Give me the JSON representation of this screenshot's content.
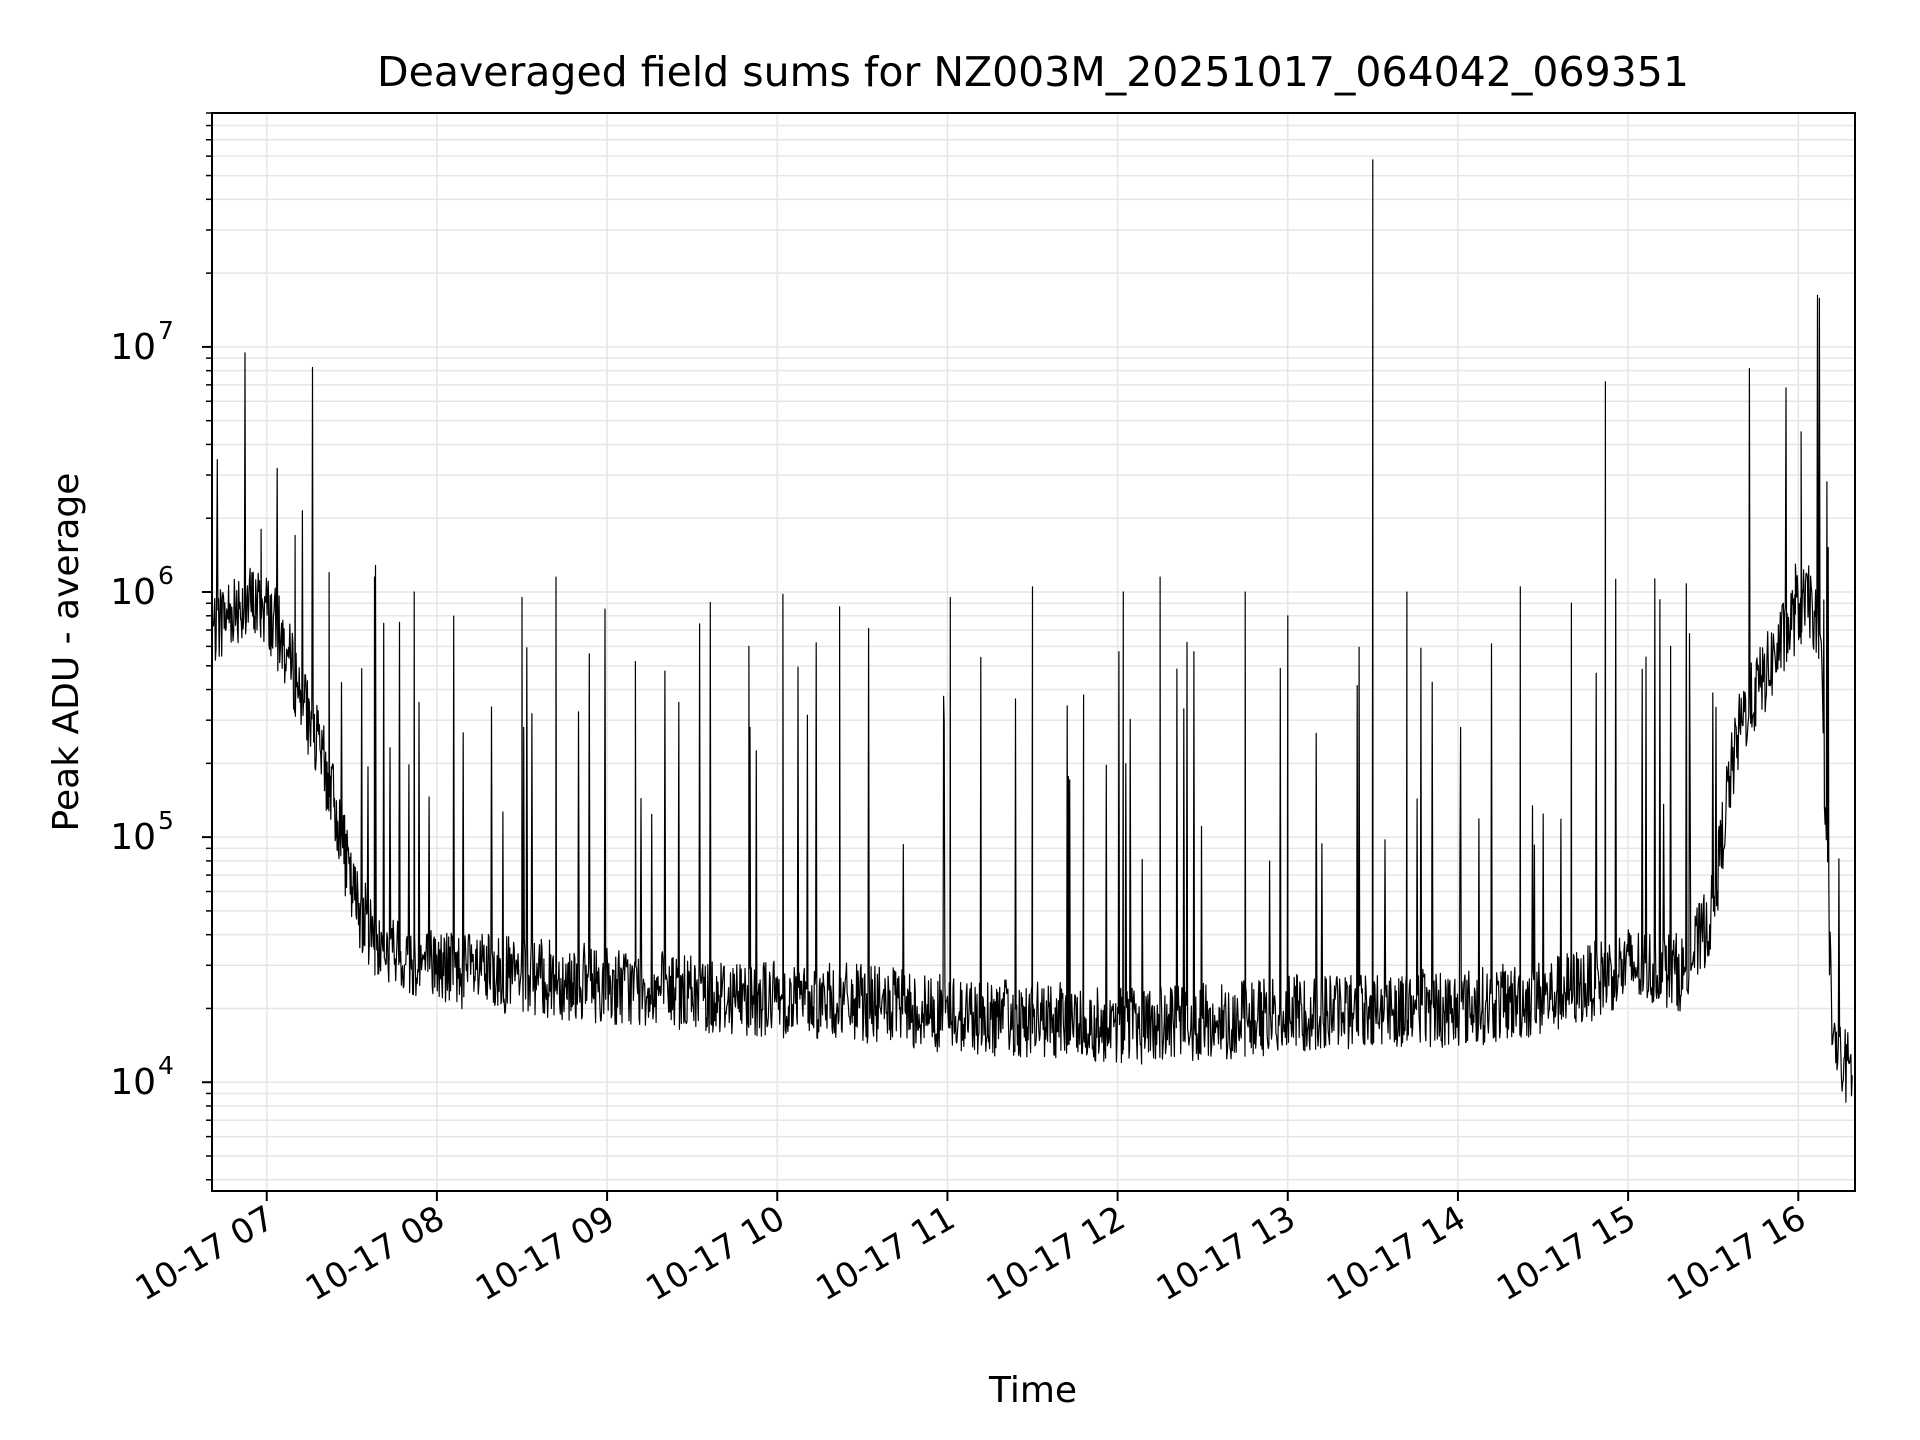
{
  "chart_data": {
    "type": "line",
    "title": "Deaveraged field sums for NZ003M_20251017_064042_069351",
    "xlabel": "Time",
    "ylabel": "Peak ADU - average",
    "y_scale": "log",
    "grid": true,
    "grid_color": "#e6e6e6",
    "line_color": "#000000",
    "xlim": [
      "2025-10-17 06:40:42",
      "2025-10-17 16:20:00"
    ],
    "ylim": [
      3600,
      90000000
    ],
    "x_ticks": [
      {
        "time": "2025-10-17 07:00",
        "label": "10-17 07"
      },
      {
        "time": "2025-10-17 08:00",
        "label": "10-17 08"
      },
      {
        "time": "2025-10-17 09:00",
        "label": "10-17 09"
      },
      {
        "time": "2025-10-17 10:00",
        "label": "10-17 10"
      },
      {
        "time": "2025-10-17 11:00",
        "label": "10-17 11"
      },
      {
        "time": "2025-10-17 12:00",
        "label": "10-17 12"
      },
      {
        "time": "2025-10-17 13:00",
        "label": "10-17 13"
      },
      {
        "time": "2025-10-17 14:00",
        "label": "10-17 14"
      },
      {
        "time": "2025-10-17 15:00",
        "label": "10-17 15"
      },
      {
        "time": "2025-10-17 16:00",
        "label": "10-17 16"
      }
    ],
    "y_ticks": [
      {
        "value": 10000,
        "base": "10",
        "exp": "4"
      },
      {
        "value": 100000,
        "base": "10",
        "exp": "5"
      },
      {
        "value": 1000000,
        "base": "10",
        "exp": "6"
      },
      {
        "value": 10000000,
        "base": "10",
        "exp": "7"
      }
    ],
    "series": [
      {
        "x": [
          "2025-10-17 06:41",
          "2025-10-17 06:45",
          "2025-10-17 06:50",
          "2025-10-17 06:55",
          "2025-10-17 07:00",
          "2025-10-17 07:05",
          "2025-10-17 07:10",
          "2025-10-17 07:15",
          "2025-10-17 07:20",
          "2025-10-17 07:25",
          "2025-10-17 07:30",
          "2025-10-17 07:35",
          "2025-10-17 07:40",
          "2025-10-17 07:50",
          "2025-10-17 08:00",
          "2025-10-17 08:15",
          "2025-10-17 08:30",
          "2025-10-17 09:00",
          "2025-10-17 09:30",
          "2025-10-17 10:00",
          "2025-10-17 10:30",
          "2025-10-17 11:00",
          "2025-10-17 11:30",
          "2025-10-17 12:00",
          "2025-10-17 12:30",
          "2025-10-17 13:00",
          "2025-10-17 13:30",
          "2025-10-17 14:00",
          "2025-10-17 14:30",
          "2025-10-17 14:45",
          "2025-10-17 15:00",
          "2025-10-17 15:20",
          "2025-10-17 15:30",
          "2025-10-17 15:35",
          "2025-10-17 15:40",
          "2025-10-17 15:50",
          "2025-10-17 16:00",
          "2025-10-17 16:05",
          "2025-10-17 16:08",
          "2025-10-17 16:10",
          "2025-10-17 16:12",
          "2025-10-17 16:15",
          "2025-10-17 16:19"
        ],
        "y": [
          700000,
          800000,
          900000,
          900000,
          850000,
          650000,
          450000,
          300000,
          200000,
          120000,
          60000,
          45000,
          35000,
          32000,
          30000,
          28000,
          27000,
          25000,
          23000,
          22000,
          21000,
          19000,
          18000,
          17000,
          17500,
          19000,
          20000,
          20000,
          22000,
          25000,
          30000,
          28000,
          50000,
          150000,
          300000,
          500000,
          850000,
          900000,
          500000,
          100000,
          15000,
          12000,
          11000
        ],
        "spikes": [
          {
            "x": "2025-10-17 06:58",
            "y": 1800000
          },
          {
            "x": "2025-10-17 07:10",
            "y": 1700000
          },
          {
            "x": "2025-10-17 07:22",
            "y": 1200000
          },
          {
            "x": "2025-10-17 07:38",
            "y": 1150000
          },
          {
            "x": "2025-10-17 07:52",
            "y": 1000000
          },
          {
            "x": "2025-10-17 08:30",
            "y": 950000
          },
          {
            "x": "2025-10-17 08:42",
            "y": 1150000
          },
          {
            "x": "2025-10-17 09:10",
            "y": 520000
          },
          {
            "x": "2025-10-17 09:50",
            "y": 600000
          },
          {
            "x": "2025-10-17 10:02",
            "y": 980000
          },
          {
            "x": "2025-10-17 10:22",
            "y": 870000
          },
          {
            "x": "2025-10-17 11:01",
            "y": 950000
          },
          {
            "x": "2025-10-17 11:30",
            "y": 1050000
          },
          {
            "x": "2025-10-17 11:48",
            "y": 380000
          },
          {
            "x": "2025-10-17 12:02",
            "y": 1000000
          },
          {
            "x": "2025-10-17 12:15",
            "y": 1150000
          },
          {
            "x": "2025-10-17 12:45",
            "y": 1000000
          },
          {
            "x": "2025-10-17 13:00",
            "y": 800000
          },
          {
            "x": "2025-10-17 13:30",
            "y": 58000000
          },
          {
            "x": "2025-10-17 13:42",
            "y": 1000000
          },
          {
            "x": "2025-10-17 14:22",
            "y": 1050000
          },
          {
            "x": "2025-10-17 14:40",
            "y": 900000
          },
          {
            "x": "2025-10-17 14:52",
            "y": 7200000
          },
          {
            "x": "2025-10-17 15:15",
            "y": 600000
          },
          {
            "x": "2025-10-17 15:59",
            "y": 1300000
          },
          {
            "x": "2025-10-17 16:01",
            "y": 4500000
          }
        ]
      }
    ]
  }
}
